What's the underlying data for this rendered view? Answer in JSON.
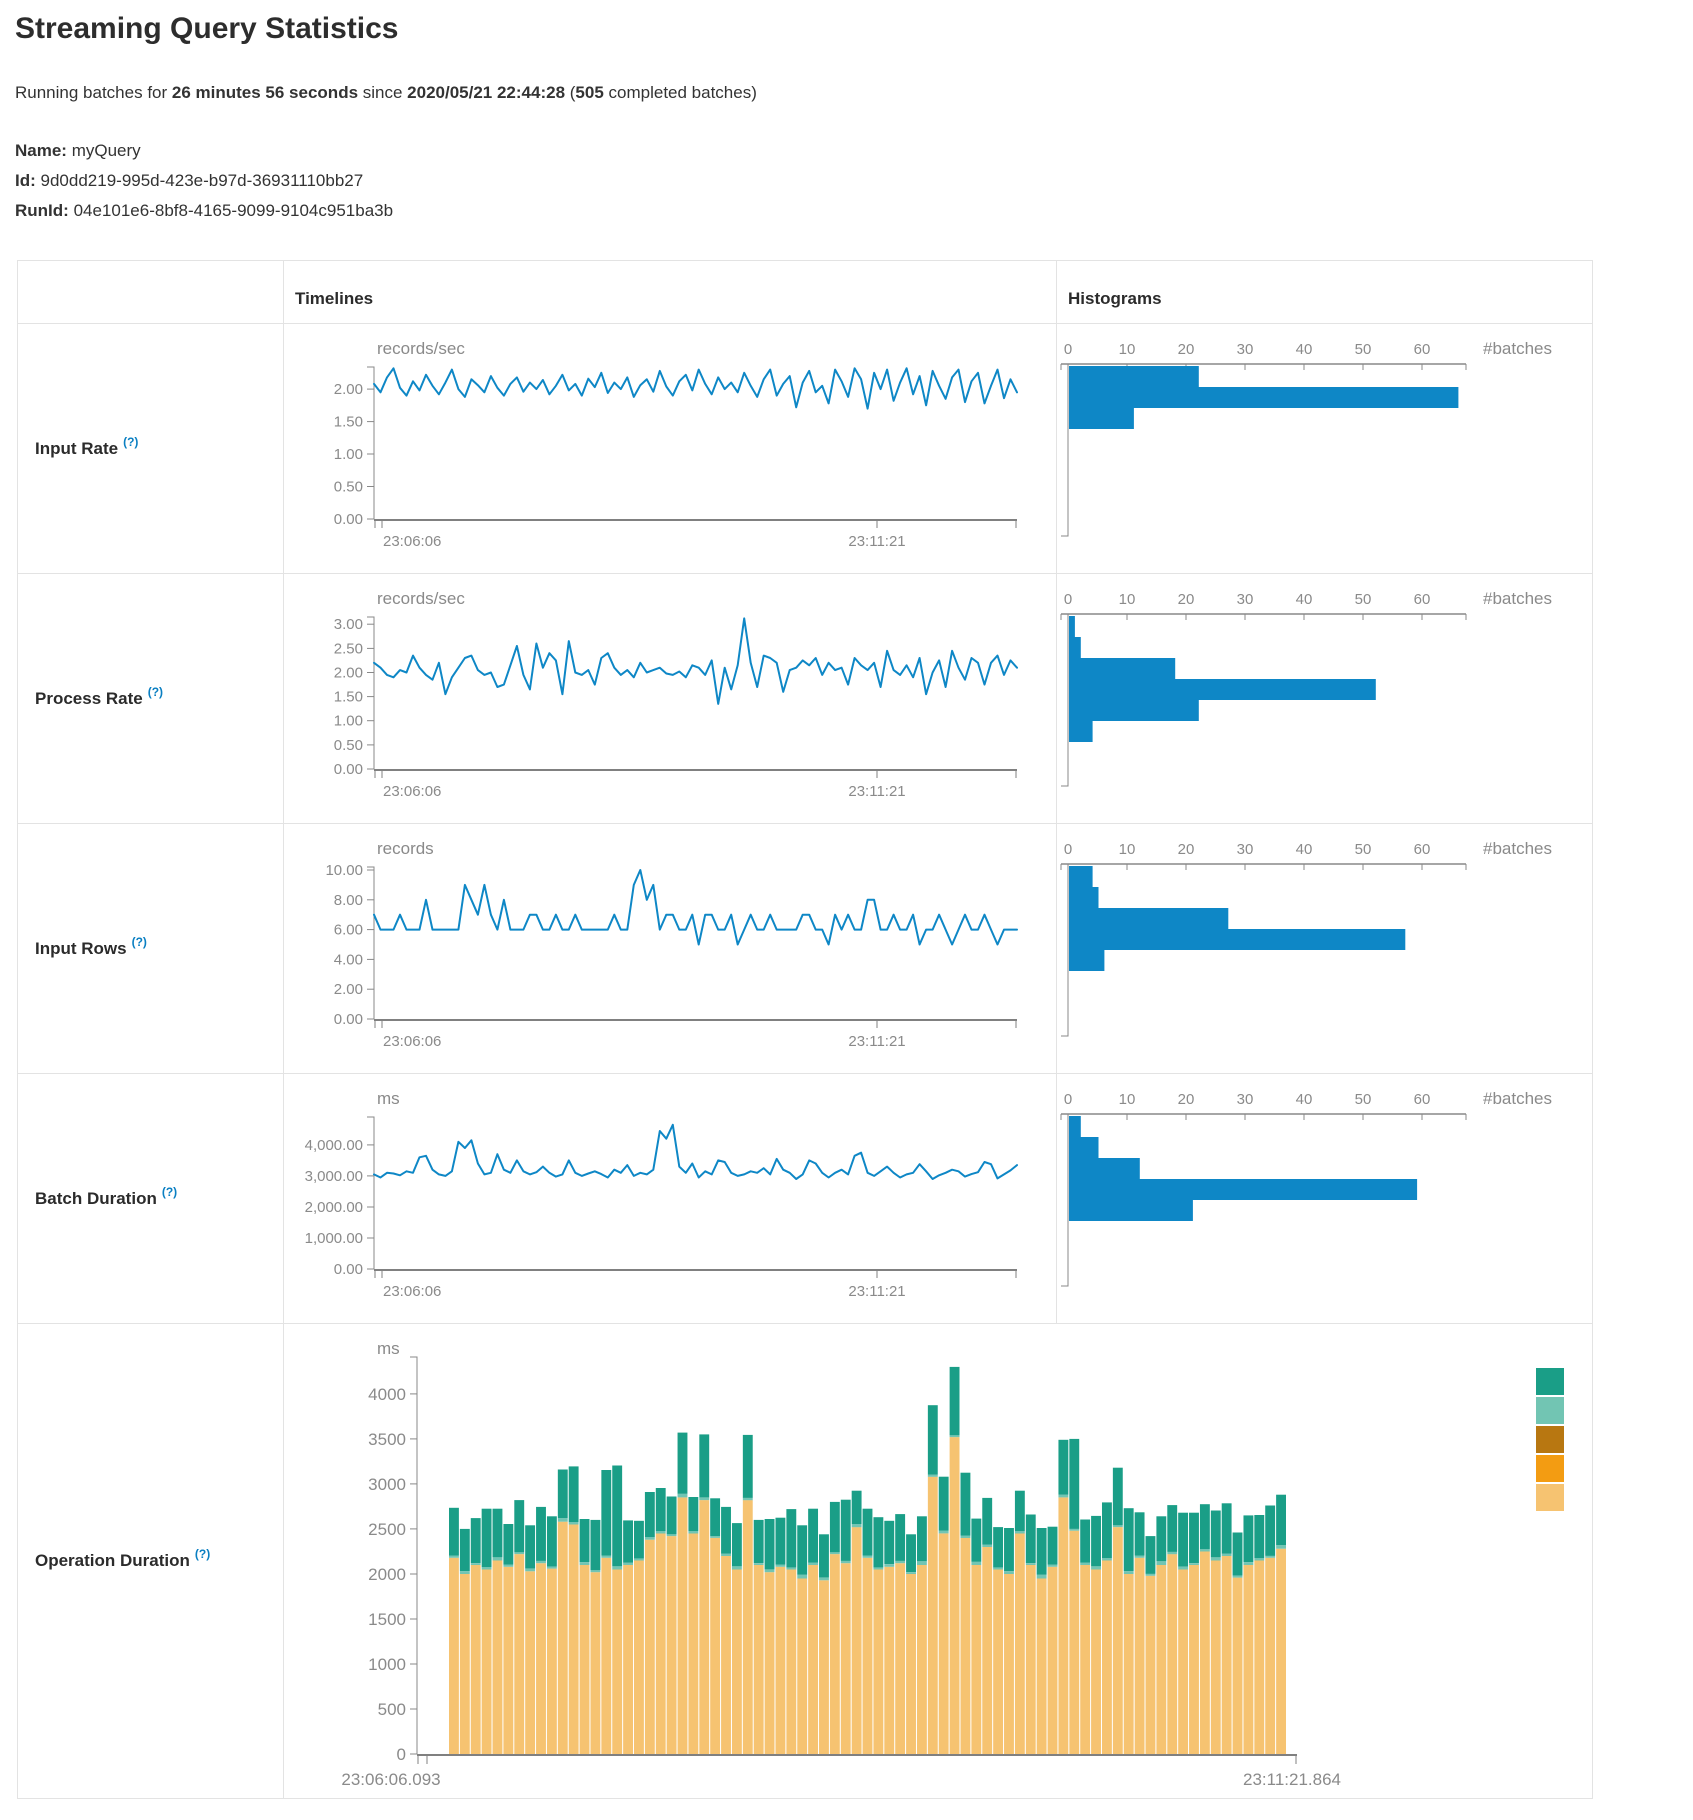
{
  "header": {
    "title": "Streaming Query Statistics",
    "subtitle": {
      "p1": "Running batches for ",
      "p2": "26 minutes 56 seconds",
      "p3": " since ",
      "p4": "2020/05/21 22:44:28",
      "p5": " (",
      "p6": "505",
      "p7": " completed batches)"
    },
    "meta": {
      "name_label": "Name:",
      "name_value": "myQuery",
      "id_label": "Id:",
      "id_value": "9d0dd219-995d-423e-b97d-36931110bb27",
      "runid_label": "RunId:",
      "runid_value": "04e101e6-8bf8-4165-9099-9104c951ba3b"
    }
  },
  "table": {
    "header": {
      "timelines": "Timelines",
      "histograms": "Histograms"
    },
    "rows": [
      {
        "label": "Input Rate",
        "help": "(?)"
      },
      {
        "label": "Process Rate",
        "help": "(?)"
      },
      {
        "label": "Input Rows",
        "help": "(?)"
      },
      {
        "label": "Batch Duration",
        "help": "(?)"
      },
      {
        "label": "Operation Duration",
        "help": "(?)"
      }
    ]
  },
  "colors": {
    "accent_blue": "#0e87c6",
    "axis_gray": "#808080",
    "tick_text": "#8a8a8a",
    "border": "#e3e3e3"
  },
  "chart_data": {
    "input_rate_timeline": {
      "type": "line",
      "unit": "records/sec",
      "color": "#0e87c6",
      "x_start_label": "23:06:06",
      "x_end_label": "23:11:21",
      "y_ticks": [
        2,
        1.5,
        1,
        0.5,
        0
      ],
      "y_tick_labels": [
        "2.00",
        "1.50",
        "1.00",
        "0.50",
        "0.00"
      ],
      "y_max": 2.34,
      "values": [
        2.08,
        1.95,
        2.18,
        2.32,
        2.02,
        1.9,
        2.12,
        1.98,
        2.22,
        2.05,
        1.92,
        2.1,
        2.3,
        2.0,
        1.88,
        2.15,
        2.06,
        1.95,
        2.2,
        2.02,
        1.9,
        2.08,
        2.18,
        1.96,
        2.1,
        2.0,
        2.14,
        1.92,
        2.05,
        2.22,
        1.98,
        2.08,
        1.9,
        2.16,
        2.03,
        2.25,
        1.94,
        2.1,
        2.0,
        2.18,
        1.88,
        2.06,
        2.15,
        1.96,
        2.28,
        2.04,
        1.9,
        2.12,
        2.22,
        1.98,
        2.3,
        2.08,
        1.92,
        2.18,
        2.0,
        2.1,
        1.95,
        2.25,
        2.05,
        1.88,
        2.15,
        2.3,
        1.9,
        2.08,
        2.2,
        1.72,
        2.1,
        2.28,
        1.95,
        2.05,
        1.78,
        2.3,
        2.12,
        1.88,
        2.32,
        2.15,
        1.7,
        2.25,
        2.0,
        2.3,
        1.82,
        2.1,
        2.32,
        1.92,
        2.2,
        1.75,
        2.28,
        2.05,
        1.85,
        2.18,
        2.3,
        1.8,
        2.12,
        2.25,
        1.78,
        2.05,
        2.3,
        1.86,
        2.15,
        1.95
      ]
    },
    "input_rate_histogram": {
      "type": "bar",
      "orientation": "horizontal",
      "xlabel": "#batches",
      "x_ticks": [
        0,
        10,
        20,
        30,
        40,
        50,
        60
      ],
      "bin_counts": [
        22,
        66,
        11
      ],
      "color": "#0e87c6"
    },
    "process_rate_timeline": {
      "type": "line",
      "unit": "records/sec",
      "color": "#0e87c6",
      "x_start_label": "23:06:06",
      "x_end_label": "23:11:21",
      "y_ticks": [
        3,
        2.5,
        2,
        1.5,
        1,
        0.5,
        0
      ],
      "y_tick_labels": [
        "3.00",
        "2.50",
        "2.00",
        "1.50",
        "1.00",
        "0.50",
        "0.00"
      ],
      "y_max": 3.15,
      "values": [
        2.2,
        2.1,
        1.95,
        1.9,
        2.05,
        2.0,
        2.35,
        2.1,
        1.95,
        1.85,
        2.2,
        1.55,
        1.9,
        2.1,
        2.3,
        2.35,
        2.05,
        1.95,
        2.0,
        1.7,
        1.75,
        2.15,
        2.55,
        1.95,
        1.65,
        2.6,
        2.1,
        2.4,
        2.25,
        1.55,
        2.65,
        2.0,
        1.95,
        2.05,
        1.75,
        2.3,
        2.4,
        2.1,
        1.95,
        2.05,
        1.9,
        2.2,
        2.0,
        2.05,
        2.1,
        1.98,
        1.95,
        2.02,
        1.9,
        2.15,
        2.1,
        1.95,
        2.25,
        1.35,
        2.1,
        1.65,
        2.15,
        3.12,
        2.2,
        1.7,
        2.35,
        2.3,
        2.2,
        1.6,
        2.05,
        2.1,
        2.25,
        2.15,
        2.3,
        1.95,
        2.2,
        2.05,
        2.1,
        1.75,
        2.3,
        2.15,
        2.05,
        2.2,
        1.7,
        2.45,
        2.05,
        1.95,
        2.15,
        1.9,
        2.3,
        1.55,
        2.0,
        2.25,
        1.7,
        2.45,
        2.1,
        1.85,
        2.3,
        2.2,
        1.75,
        2.2,
        2.35,
        1.95,
        2.25,
        2.1
      ]
    },
    "process_rate_histogram": {
      "type": "bar",
      "orientation": "horizontal",
      "xlabel": "#batches",
      "x_ticks": [
        0,
        10,
        20,
        30,
        40,
        50,
        60
      ],
      "bin_counts": [
        1,
        2,
        18,
        52,
        22,
        4
      ],
      "color": "#0e87c6"
    },
    "input_rows_timeline": {
      "type": "line",
      "unit": "records",
      "color": "#0e87c6",
      "x_start_label": "23:06:06",
      "x_end_label": "23:11:21",
      "y_ticks": [
        10,
        8,
        6,
        4,
        2,
        0
      ],
      "y_tick_labels": [
        "10.00",
        "8.00",
        "6.00",
        "4.00",
        "2.00",
        "0.00"
      ],
      "y_max": 10.2,
      "values": [
        7,
        6,
        6,
        6,
        7,
        6,
        6,
        6,
        8,
        6,
        6,
        6,
        6,
        6,
        9,
        8,
        7,
        9,
        7,
        6,
        8,
        6,
        6,
        6,
        7,
        7,
        6,
        6,
        7,
        6,
        6,
        7,
        6,
        6,
        6,
        6,
        6,
        7,
        6,
        6,
        9,
        10,
        8,
        9,
        6,
        7,
        7,
        6,
        6,
        7,
        5,
        7,
        7,
        6,
        6,
        7,
        5,
        6,
        7,
        6,
        6,
        7,
        6,
        6,
        6,
        6,
        7,
        7,
        6,
        6,
        5,
        7,
        6,
        7,
        6,
        6,
        8,
        8,
        6,
        6,
        7,
        6,
        6,
        7,
        5,
        6,
        6,
        7,
        6,
        5,
        6,
        7,
        6,
        6,
        7,
        6,
        5,
        6,
        6,
        6
      ]
    },
    "input_rows_histogram": {
      "type": "bar",
      "orientation": "horizontal",
      "xlabel": "#batches",
      "x_ticks": [
        0,
        10,
        20,
        30,
        40,
        50,
        60
      ],
      "bin_counts": [
        4,
        5,
        27,
        57,
        6
      ],
      "color": "#0e87c6"
    },
    "batch_duration_timeline": {
      "type": "line",
      "unit": "ms",
      "color": "#0e87c6",
      "x_start_label": "23:06:06",
      "x_end_label": "23:11:21",
      "y_ticks": [
        4000,
        3000,
        2000,
        1000,
        0
      ],
      "y_tick_labels": [
        "4,000.00",
        "3,000.00",
        "2,000.00",
        "1,000.00",
        "0.00"
      ],
      "y_max": 4900,
      "values": [
        3050,
        2950,
        3100,
        3080,
        3020,
        3150,
        3100,
        3600,
        3650,
        3200,
        3050,
        3000,
        3150,
        4100,
        3900,
        4150,
        3400,
        3050,
        3100,
        3700,
        3200,
        3100,
        3500,
        3150,
        3050,
        3120,
        3300,
        3100,
        2980,
        3050,
        3500,
        3100,
        3000,
        3080,
        3150,
        3060,
        2950,
        3200,
        3100,
        3350,
        3000,
        3100,
        3050,
        3200,
        4450,
        4200,
        4650,
        3300,
        3100,
        3400,
        2950,
        3150,
        3050,
        3500,
        3450,
        3100,
        3000,
        3050,
        3150,
        3100,
        3250,
        3050,
        3550,
        3200,
        3100,
        2900,
        3050,
        3500,
        3400,
        3100,
        2950,
        3100,
        3200,
        3050,
        3650,
        3750,
        3100,
        3000,
        3150,
        3300,
        3100,
        2950,
        3050,
        3100,
        3380,
        3150,
        2900,
        3020,
        3100,
        3200,
        3150,
        2980,
        3060,
        3120,
        3450,
        3380,
        2920,
        3050,
        3180,
        3350
      ]
    },
    "batch_duration_histogram": {
      "type": "bar",
      "orientation": "horizontal",
      "xlabel": "#batches",
      "x_ticks": [
        0,
        10,
        20,
        30,
        40,
        50,
        60
      ],
      "bin_counts": [
        2,
        5,
        12,
        59,
        21
      ],
      "color": "#0e87c6"
    },
    "operation_duration": {
      "type": "stacked-bar",
      "unit": "ms",
      "x_start_label": "23:06:06.093",
      "x_end_label": "23:11:21.864",
      "y_ticks": [
        4000,
        3500,
        3000,
        2500,
        2000,
        1500,
        1000,
        500,
        0
      ],
      "y_tick_labels": [
        "4000",
        "3500",
        "3000",
        "2500",
        "2000",
        "1500",
        "1000",
        "500",
        "0"
      ],
      "y_max": 4410,
      "legend_colors": [
        "#1a9e87",
        "#72c5b3",
        "#b87711",
        "#f39c12",
        "#f6c371"
      ],
      "series": [
        {
          "name": "light-orange",
          "color": "#f6c371",
          "values": [
            2180,
            2000,
            2100,
            2050,
            2150,
            2080,
            2220,
            2030,
            2120,
            2060,
            2580,
            2550,
            2100,
            2020,
            2180,
            2050,
            2100,
            2150,
            2380,
            2450,
            2420,
            2850,
            2450,
            2820,
            2400,
            2200,
            2050,
            2820,
            2100,
            2020,
            2080,
            2050,
            1950,
            2100,
            1930,
            2220,
            2120,
            2520,
            2180,
            2050,
            2080,
            2120,
            2000,
            2100,
            3080,
            2450,
            3520,
            2400,
            2100,
            2300,
            2050,
            2000,
            2450,
            2100,
            1950,
            2080,
            2850,
            2480,
            2100,
            2050,
            2150,
            2520,
            2000,
            2180,
            1980,
            2100,
            2220,
            2050,
            2100,
            2250,
            2150,
            2200,
            1960,
            2100,
            2150,
            2180,
            2280
          ]
        },
        {
          "name": "light-teal",
          "color": "#72c5b3",
          "values": [
            25,
            30,
            20,
            25,
            35,
            25,
            20,
            30,
            25,
            20,
            40,
            25,
            30,
            20,
            25,
            35,
            25,
            20,
            30,
            25,
            20,
            40,
            25,
            30,
            20,
            25,
            35,
            25,
            20,
            30,
            25,
            20,
            40,
            25,
            30,
            20,
            25,
            35,
            25,
            20,
            30,
            25,
            20,
            40,
            25,
            30,
            20,
            25,
            35,
            25,
            20,
            30,
            25,
            20,
            40,
            25,
            30,
            20,
            25,
            35,
            25,
            20,
            30,
            25,
            20,
            40,
            25,
            30,
            20,
            25,
            35,
            25,
            20,
            30,
            25,
            20,
            40
          ]
        },
        {
          "name": "teal-green",
          "color": "#1a9e87",
          "values": [
            530,
            470,
            500,
            650,
            540,
            450,
            580,
            480,
            600,
            560,
            540,
            620,
            480,
            560,
            950,
            1120,
            470,
            420,
            500,
            480,
            420,
            680,
            380,
            700,
            420,
            520,
            480,
            700,
            480,
            560,
            520,
            650,
            550,
            600,
            480,
            560,
            680,
            370,
            520,
            560,
            480,
            520,
            420,
            500,
            770,
            600,
            760,
            700,
            480,
            520,
            450,
            480,
            450,
            540,
            520,
            420,
            610,
            1000,
            480,
            560,
            620,
            640,
            700,
            480,
            420,
            500,
            520,
            600,
            560,
            500,
            520,
            560,
            480,
            520,
            480,
            560,
            560
          ]
        }
      ]
    }
  }
}
